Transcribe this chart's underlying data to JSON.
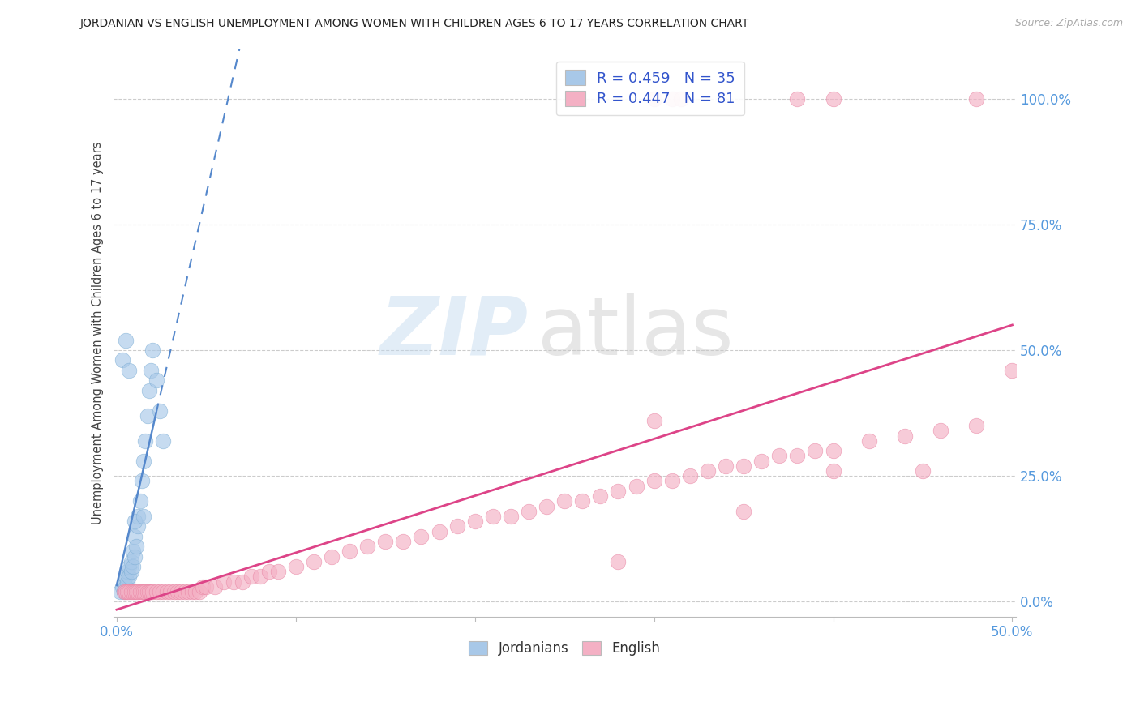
{
  "title": "JORDANIAN VS ENGLISH UNEMPLOYMENT AMONG WOMEN WITH CHILDREN AGES 6 TO 17 YEARS CORRELATION CHART",
  "source": "Source: ZipAtlas.com",
  "ylabel": "Unemployment Among Women with Children Ages 6 to 17 years",
  "xlim": [
    -0.002,
    0.502
  ],
  "ylim": [
    -0.03,
    1.1
  ],
  "ytick_labels": [
    "0.0%",
    "25.0%",
    "50.0%",
    "75.0%",
    "100.0%"
  ],
  "ytick_values": [
    0.0,
    0.25,
    0.5,
    0.75,
    1.0
  ],
  "xtick_labels": [
    "0.0%",
    "",
    "",
    "",
    "",
    "50.0%"
  ],
  "xtick_values": [
    0.0,
    0.1,
    0.2,
    0.3,
    0.4,
    0.5
  ],
  "legend_R_jordan": "0.459",
  "legend_N_jordan": "35",
  "legend_R_english": "0.447",
  "legend_N_english": "81",
  "jordan_color": "#A8C8E8",
  "jordan_edge_color": "#7AACD4",
  "english_color": "#F4B0C4",
  "english_edge_color": "#E880A0",
  "jordan_line_color": "#5588CC",
  "english_line_color": "#DD4488",
  "background_color": "#FFFFFF",
  "jordan_x": [
    0.002,
    0.003,
    0.004,
    0.004,
    0.005,
    0.005,
    0.006,
    0.006,
    0.007,
    0.007,
    0.008,
    0.008,
    0.009,
    0.009,
    0.01,
    0.01,
    0.011,
    0.012,
    0.012,
    0.013,
    0.014,
    0.015,
    0.016,
    0.017,
    0.018,
    0.019,
    0.02,
    0.022,
    0.024,
    0.026,
    0.003,
    0.005,
    0.007,
    0.01,
    0.015
  ],
  "jordan_y": [
    0.02,
    0.03,
    0.02,
    0.04,
    0.03,
    0.05,
    0.04,
    0.06,
    0.05,
    0.07,
    0.06,
    0.08,
    0.07,
    0.1,
    0.09,
    0.13,
    0.11,
    0.15,
    0.17,
    0.2,
    0.24,
    0.28,
    0.32,
    0.37,
    0.42,
    0.46,
    0.5,
    0.44,
    0.38,
    0.32,
    0.48,
    0.52,
    0.46,
    0.16,
    0.17
  ],
  "english_x": [
    0.004,
    0.005,
    0.006,
    0.007,
    0.008,
    0.009,
    0.01,
    0.011,
    0.012,
    0.013,
    0.014,
    0.015,
    0.016,
    0.017,
    0.018,
    0.019,
    0.02,
    0.022,
    0.024,
    0.026,
    0.028,
    0.03,
    0.032,
    0.034,
    0.036,
    0.038,
    0.04,
    0.042,
    0.044,
    0.046,
    0.048,
    0.05,
    0.055,
    0.06,
    0.065,
    0.07,
    0.075,
    0.08,
    0.085,
    0.09,
    0.1,
    0.11,
    0.12,
    0.13,
    0.14,
    0.15,
    0.16,
    0.17,
    0.18,
    0.19,
    0.2,
    0.21,
    0.22,
    0.23,
    0.24,
    0.25,
    0.26,
    0.27,
    0.28,
    0.29,
    0.3,
    0.31,
    0.32,
    0.33,
    0.34,
    0.35,
    0.36,
    0.37,
    0.38,
    0.39,
    0.4,
    0.42,
    0.44,
    0.46,
    0.48,
    0.5,
    0.28,
    0.3,
    0.35,
    0.4,
    0.45
  ],
  "english_y": [
    0.02,
    0.02,
    0.02,
    0.02,
    0.02,
    0.02,
    0.02,
    0.02,
    0.02,
    0.02,
    0.02,
    0.02,
    0.02,
    0.02,
    0.02,
    0.02,
    0.02,
    0.02,
    0.02,
    0.02,
    0.02,
    0.02,
    0.02,
    0.02,
    0.02,
    0.02,
    0.02,
    0.02,
    0.02,
    0.02,
    0.03,
    0.03,
    0.03,
    0.04,
    0.04,
    0.04,
    0.05,
    0.05,
    0.06,
    0.06,
    0.07,
    0.08,
    0.09,
    0.1,
    0.11,
    0.12,
    0.12,
    0.13,
    0.14,
    0.15,
    0.16,
    0.17,
    0.17,
    0.18,
    0.19,
    0.2,
    0.2,
    0.21,
    0.22,
    0.23,
    0.24,
    0.24,
    0.25,
    0.26,
    0.27,
    0.27,
    0.28,
    0.29,
    0.29,
    0.3,
    0.3,
    0.32,
    0.33,
    0.34,
    0.35,
    0.46,
    0.08,
    0.36,
    0.18,
    0.26,
    0.26
  ],
  "english_high_x": [
    0.3,
    0.31,
    0.315,
    0.38,
    0.4,
    0.48
  ],
  "english_high_y": [
    1.0,
    1.0,
    1.0,
    1.0,
    1.0,
    1.0
  ],
  "jordan_line_x": [
    0.0,
    0.5
  ],
  "jordan_line_y_intercept": -0.02,
  "jordan_line_slope": 22.0,
  "english_line_x": [
    0.0,
    0.5
  ],
  "english_line_y_intercept": 0.0,
  "english_line_slope": 0.9
}
